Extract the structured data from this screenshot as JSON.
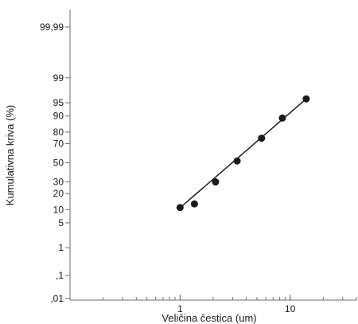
{
  "chart_data": {
    "type": "scatter",
    "title": "",
    "xlabel": "Veličina čestica (um)",
    "ylabel": "Kumulativna kriva (%)",
    "x_scale": "log",
    "y_scale": "probability",
    "xlim": [
      0.1,
      40
    ],
    "x_ticks": [
      {
        "value": 1,
        "label": "1"
      },
      {
        "value": 10,
        "label": "10"
      }
    ],
    "y_ticks": [
      {
        "value": 0.01,
        "label": ",01"
      },
      {
        "value": 0.1,
        "label": ",1"
      },
      {
        "value": 1,
        "label": "1"
      },
      {
        "value": 5,
        "label": "5"
      },
      {
        "value": 10,
        "label": "10"
      },
      {
        "value": 20,
        "label": "20"
      },
      {
        "value": 30,
        "label": "30"
      },
      {
        "value": 50,
        "label": "50"
      },
      {
        "value": 70,
        "label": "70"
      },
      {
        "value": 80,
        "label": "80"
      },
      {
        "value": 90,
        "label": "90"
      },
      {
        "value": 95,
        "label": "95"
      },
      {
        "value": 99,
        "label": "99"
      },
      {
        "value": 99.99,
        "label": "99,99"
      }
    ],
    "points": [
      {
        "x": 1.0,
        "y": 11
      },
      {
        "x": 1.35,
        "y": 13
      },
      {
        "x": 2.1,
        "y": 30
      },
      {
        "x": 3.3,
        "y": 52
      },
      {
        "x": 5.5,
        "y": 75
      },
      {
        "x": 8.5,
        "y": 89
      },
      {
        "x": 14,
        "y": 96
      }
    ],
    "fit_line": [
      {
        "x": 1.05,
        "y": 12
      },
      {
        "x": 14,
        "y": 96
      }
    ],
    "grid": false,
    "colors": {
      "marks": "#1a1a1a",
      "axis": "#6e6e6e"
    }
  }
}
